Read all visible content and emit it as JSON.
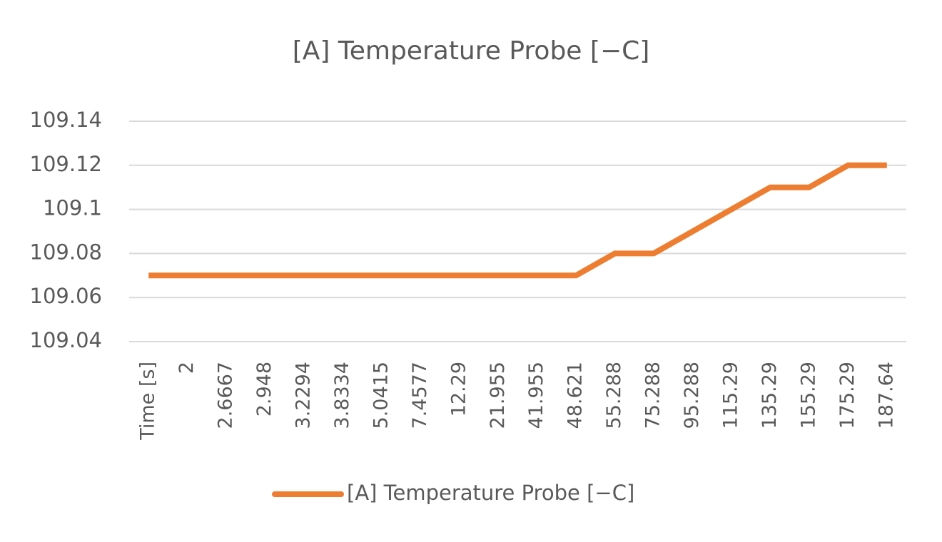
{
  "chart_data": {
    "type": "line",
    "title": "[A] Temperature Probe [−C]",
    "categories": [
      "Time [s]",
      "2",
      "2.6667",
      "2.948",
      "3.2294",
      "3.8334",
      "5.0415",
      "7.4577",
      "12.29",
      "21.955",
      "41.955",
      "48.621",
      "55.288",
      "75.288",
      "95.288",
      "115.29",
      "135.29",
      "155.29",
      "175.29",
      "187.64"
    ],
    "series": [
      {
        "name": "[A] Temperature Probe [−C]",
        "color": "#ed7d31",
        "values": [
          109.07,
          109.07,
          109.07,
          109.07,
          109.07,
          109.07,
          109.07,
          109.07,
          109.07,
          109.07,
          109.07,
          109.07,
          109.08,
          109.08,
          109.09,
          109.1,
          109.11,
          109.11,
          109.12,
          109.12
        ]
      }
    ],
    "ylim": [
      109.04,
      109.14
    ],
    "yticks": [
      109.04,
      109.06,
      109.08,
      109.1,
      109.12,
      109.14
    ],
    "grid": true,
    "legend": "bottom"
  }
}
